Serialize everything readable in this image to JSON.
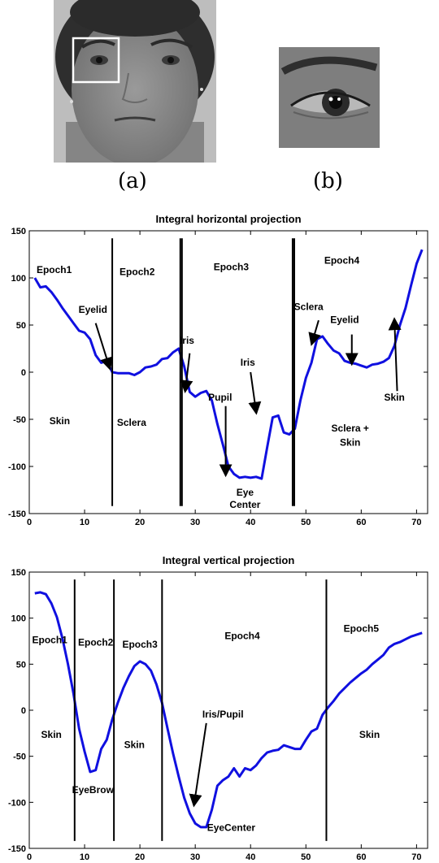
{
  "captions": {
    "a": "(a)",
    "b": "(b)"
  },
  "chart_data": [
    {
      "type": "line",
      "title": "Integral horizontal projection",
      "xlim": [
        0,
        72
      ],
      "ylim": [
        -150,
        150
      ],
      "xticks": [
        0,
        10,
        20,
        30,
        40,
        50,
        60,
        70
      ],
      "yticks": [
        150,
        100,
        50,
        0,
        -50,
        -100,
        -150
      ],
      "line_color": "#1010e0",
      "x": [
        1,
        2,
        3,
        4,
        5,
        6,
        7,
        8,
        9,
        10,
        11,
        12,
        13,
        14,
        15,
        16,
        17,
        18,
        19,
        20,
        21,
        22,
        23,
        24,
        25,
        26,
        27,
        28,
        29,
        30,
        31,
        32,
        33,
        34,
        35,
        36,
        37,
        38,
        39,
        40,
        41,
        42,
        43,
        44,
        45,
        46,
        47,
        48,
        49,
        50,
        51,
        52,
        53,
        54,
        55,
        56,
        57,
        58,
        59,
        60,
        61,
        62,
        63,
        64,
        65,
        66,
        67,
        68,
        69,
        70,
        71
      ],
      "y": [
        100,
        90,
        91,
        85,
        77,
        68,
        60,
        52,
        44,
        42,
        35,
        18,
        10,
        12,
        0,
        -1,
        -1,
        -1,
        -3,
        0,
        5,
        6,
        8,
        14,
        15,
        21,
        25,
        6,
        -21,
        -26,
        -22,
        -20,
        -30,
        -55,
        -77,
        -100,
        -108,
        -112,
        -111,
        -112,
        -111,
        -113,
        -80,
        -48,
        -46,
        -64,
        -66,
        -60,
        -30,
        -6,
        10,
        35,
        38,
        30,
        23,
        20,
        12,
        10,
        9,
        7,
        5,
        8,
        9,
        11,
        15,
        28,
        50,
        68,
        92,
        115,
        130
      ],
      "vlines": [
        15.0,
        27.3,
        27.6,
        47.6,
        47.9
      ],
      "labels": [
        {
          "text": "Epoch1",
          "x": 4.5,
          "y": 105
        },
        {
          "text": "Epoch2",
          "x": 19.5,
          "y": 103
        },
        {
          "text": "Epoch3",
          "x": 36.5,
          "y": 108
        },
        {
          "text": "Epoch4",
          "x": 56.5,
          "y": 115
        },
        {
          "text": "Eyelid",
          "x": 11.5,
          "y": 63
        },
        {
          "text": "Sclera",
          "x": 50.5,
          "y": 66
        },
        {
          "text": "Eyelid",
          "x": 57.0,
          "y": 52
        },
        {
          "text": "Iris",
          "x": 28.5,
          "y": 30
        },
        {
          "text": "Iris",
          "x": 39.5,
          "y": 7
        },
        {
          "text": "Pupil",
          "x": 34.5,
          "y": -30
        },
        {
          "text": "Skin",
          "x": 66.0,
          "y": -30
        },
        {
          "text": "Skin",
          "x": 5.5,
          "y": -55
        },
        {
          "text": "Sclera",
          "x": 18.5,
          "y": -57
        },
        {
          "text": "Sclera +",
          "x": 58.0,
          "y": -63
        },
        {
          "text": "Skin",
          "x": 58.0,
          "y": -78
        },
        {
          "text": "Eye",
          "x": 39.0,
          "y": -131
        },
        {
          "text": "Center",
          "x": 39.0,
          "y": -144
        }
      ],
      "arrows": [
        {
          "from": [
            12.0,
            52
          ],
          "to": [
            14.5,
            5
          ]
        },
        {
          "from": [
            29.0,
            20
          ],
          "to": [
            28.2,
            -19
          ]
        },
        {
          "from": [
            40.0,
            0
          ],
          "to": [
            41.0,
            -42
          ]
        },
        {
          "from": [
            35.5,
            -36
          ],
          "to": [
            35.5,
            -108
          ]
        },
        {
          "from": [
            52.3,
            55
          ],
          "to": [
            51.1,
            31
          ]
        },
        {
          "from": [
            58.3,
            40
          ],
          "to": [
            58.3,
            10
          ]
        },
        {
          "from": [
            66.5,
            -20
          ],
          "to": [
            66.0,
            55
          ]
        }
      ]
    },
    {
      "type": "line",
      "title": "Integral vertical projection",
      "xlim": [
        0,
        72
      ],
      "ylim": [
        -150,
        150
      ],
      "xticks": [
        0,
        10,
        20,
        30,
        40,
        50,
        60,
        70
      ],
      "yticks": [
        150,
        100,
        50,
        0,
        -50,
        -100,
        -150
      ],
      "line_color": "#1010e0",
      "x": [
        1,
        2,
        3,
        4,
        5,
        6,
        7,
        8,
        9,
        10,
        11,
        12,
        13,
        14,
        15,
        16,
        17,
        18,
        19,
        20,
        21,
        22,
        23,
        24,
        25,
        26,
        27,
        28,
        29,
        30,
        31,
        32,
        33,
        34,
        35,
        36,
        37,
        38,
        39,
        40,
        41,
        42,
        43,
        44,
        45,
        46,
        47,
        48,
        49,
        50,
        51,
        52,
        53,
        54,
        55,
        56,
        57,
        58,
        59,
        60,
        61,
        62,
        63,
        64,
        65,
        66,
        67,
        68,
        69,
        70,
        71
      ],
      "y": [
        127,
        128,
        126,
        116,
        101,
        78,
        50,
        18,
        -20,
        -45,
        -67,
        -65,
        -42,
        -32,
        -10,
        8,
        24,
        37,
        48,
        53,
        50,
        43,
        28,
        8,
        -20,
        -47,
        -72,
        -95,
        -112,
        -123,
        -127,
        -127,
        -108,
        -82,
        -76,
        -72,
        -63,
        -72,
        -63,
        -65,
        -60,
        -52,
        -46,
        -44,
        -43,
        -38,
        -40,
        -42,
        -42,
        -32,
        -23,
        -20,
        -5,
        3,
        10,
        18,
        24,
        30,
        35,
        40,
        44,
        50,
        55,
        60,
        68,
        72,
        74,
        77,
        80,
        82,
        84
      ],
      "vlines": [
        8.2,
        15.3,
        24.0,
        53.7
      ],
      "labels": [
        {
          "text": "Epoch1",
          "x": 3.7,
          "y": 73
        },
        {
          "text": "Epoch2",
          "x": 12.0,
          "y": 70
        },
        {
          "text": "Epoch3",
          "x": 20.0,
          "y": 68
        },
        {
          "text": "Epoch4",
          "x": 38.5,
          "y": 77
        },
        {
          "text": "Epoch5",
          "x": 60.0,
          "y": 85
        },
        {
          "text": "Skin",
          "x": 4.0,
          "y": -30
        },
        {
          "text": "Skin",
          "x": 19.0,
          "y": -41
        },
        {
          "text": "Skin",
          "x": 61.5,
          "y": -30
        },
        {
          "text": "Iris/Pupil",
          "x": 35.0,
          "y": -8
        },
        {
          "text": "EyeBrow",
          "x": 11.5,
          "y": -90
        },
        {
          "text": "EyeCenter",
          "x": 36.5,
          "y": -131
        }
      ],
      "arrows": [
        {
          "from": [
            32.0,
            -14
          ],
          "to": [
            29.8,
            -102
          ]
        }
      ]
    }
  ]
}
